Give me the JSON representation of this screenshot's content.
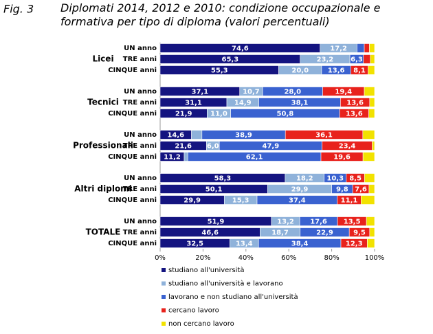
{
  "fig_label": "Fig. 3",
  "chart_data": {
    "type": "bar",
    "orientation": "horizontal",
    "stacked": true,
    "title": "Diplomati 2014, 2012 e 2010: condizione occupazionale e formativa per tipo di diploma (valori percentuali)",
    "groups": [
      "Licei",
      "Tecnici",
      "Professionali",
      "Altri diplomi",
      "TOTALE"
    ],
    "categories": [
      "UN anno",
      "TRE anni",
      "CINQUE anni",
      "UN anno",
      "TRE anni",
      "CINQUE anni",
      "UN anno",
      "TRE anni",
      "CINQUE anni",
      "UN anno",
      "TRE anni",
      "CINQUE anni",
      "UN anno",
      "TRE anni",
      "CINQUE anni"
    ],
    "series": [
      {
        "name": "studiano all'università",
        "color": "#141480",
        "values": [
          74.6,
          65.3,
          55.3,
          37.1,
          31.1,
          21.9,
          14.6,
          21.6,
          11.2,
          58.3,
          50.1,
          29.9,
          51.9,
          46.6,
          32.5
        ],
        "value_labels": [
          "74,6",
          "65,3",
          "55,3",
          "37,1",
          "31,1",
          "21,9",
          "14,6",
          "21,6",
          "11,2",
          "58,3",
          "50,1",
          "29,9",
          "51,9",
          "46,6",
          "32,5"
        ]
      },
      {
        "name": "studiano all'università e lavorano",
        "color": "#8fb2da",
        "values": [
          17.2,
          23.2,
          20.0,
          10.7,
          14.9,
          11.0,
          4.9,
          6.0,
          1.7,
          18.2,
          29.9,
          15.3,
          13.2,
          18.7,
          13.4
        ],
        "value_labels": [
          "17,2",
          "23,2",
          "20,0",
          "10,7",
          "14,9",
          "11,0",
          null,
          "6,0",
          null,
          "18,2",
          "29,9",
          "15,3",
          "13,2",
          "18,7",
          "13,4"
        ]
      },
      {
        "name": "lavorano e non studiano all'università",
        "color": "#3a62d0",
        "values": [
          3.4,
          6.3,
          13.6,
          28.0,
          38.1,
          50.8,
          38.9,
          47.9,
          62.1,
          10.3,
          9.8,
          37.4,
          17.6,
          22.9,
          38.4
        ],
        "value_labels": [
          null,
          "6,3",
          "13,6",
          "28,0",
          "38,1",
          "50,8",
          "38,9",
          "47,9",
          "62,1",
          "10,3",
          "9,8",
          "37,4",
          "17,6",
          "22,9",
          "38,4"
        ]
      },
      {
        "name": "cercano lavoro",
        "color": "#e8221c",
        "values": [
          2.4,
          3.2,
          8.1,
          19.4,
          13.6,
          13.6,
          36.1,
          23.4,
          19.6,
          8.5,
          7.6,
          11.1,
          13.5,
          9.5,
          12.3
        ],
        "value_labels": [
          null,
          null,
          "8,1",
          "19,4",
          "13,6",
          "13,6",
          "36,1",
          "23,4",
          "19,6",
          "8,5",
          "7,6",
          "11,1",
          "13,5",
          "9,5",
          "12,3"
        ]
      },
      {
        "name": "non cercano lavoro",
        "color": "#f2e200",
        "values": [
          2.4,
          2.0,
          3.0,
          4.8,
          2.3,
          2.7,
          5.5,
          1.1,
          5.4,
          4.7,
          2.6,
          6.3,
          3.8,
          2.3,
          3.4
        ]
      }
    ],
    "xlim": [
      0,
      100
    ],
    "xticks": [
      {
        "value": 0,
        "label": "0%"
      },
      {
        "value": 20,
        "label": "20%"
      },
      {
        "value": 40,
        "label": "40%"
      },
      {
        "value": 60,
        "label": "60%"
      },
      {
        "value": 80,
        "label": "80%"
      },
      {
        "value": 100,
        "label": "100%"
      }
    ]
  }
}
